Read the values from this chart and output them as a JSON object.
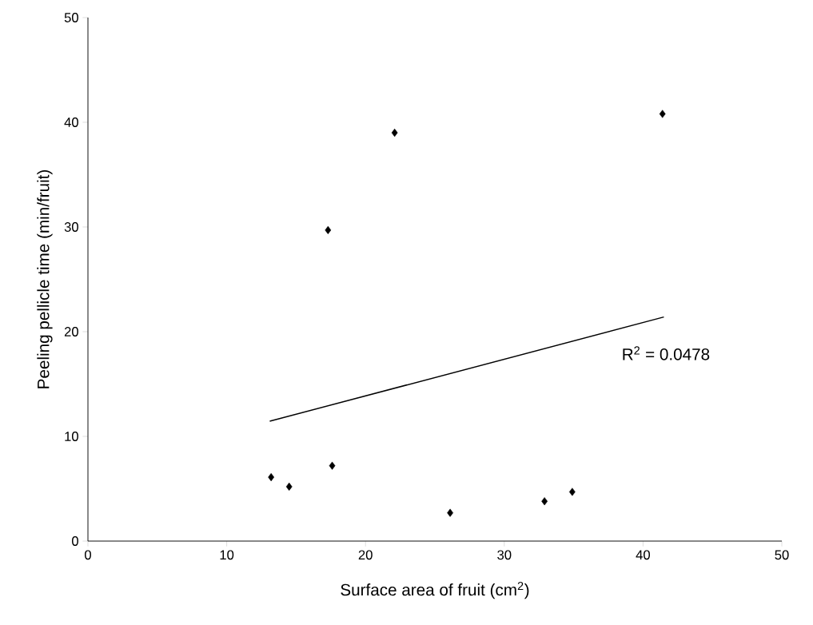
{
  "chart_data": {
    "type": "scatter",
    "xlabel": "Surface area of fruit (cm$^{2}$)",
    "ylabel": "Peeling pellicle time (min/fruit)",
    "series": [
      {
        "color": "#000000",
        "marker": "diamond",
        "x": [
          13.2,
          14.5,
          17.3,
          17.6,
          22.1,
          26.1,
          32.9,
          34.9,
          41.4
        ],
        "values": [
          6.1,
          5.2,
          29.7,
          7.2,
          39.0,
          2.7,
          3.8,
          4.7,
          40.8
        ]
      },
      {
        "type": "line",
        "color": "#000000",
        "marker": "none",
        "x": [
          13.1,
          41.5
        ],
        "values": [
          11.45,
          21.4
        ]
      }
    ],
    "annotations": [
      {
        "text": "R$^{2}$ = 0.0478",
        "x": 41.5,
        "y": 21.4
      }
    ],
    "xlim": [
      0,
      50
    ],
    "ylim": [
      0,
      50
    ],
    "xticks": [
      0,
      10,
      20,
      30,
      40,
      50
    ],
    "yticks": [
      0,
      10,
      20,
      30,
      40,
      50
    ],
    "grid": false
  }
}
